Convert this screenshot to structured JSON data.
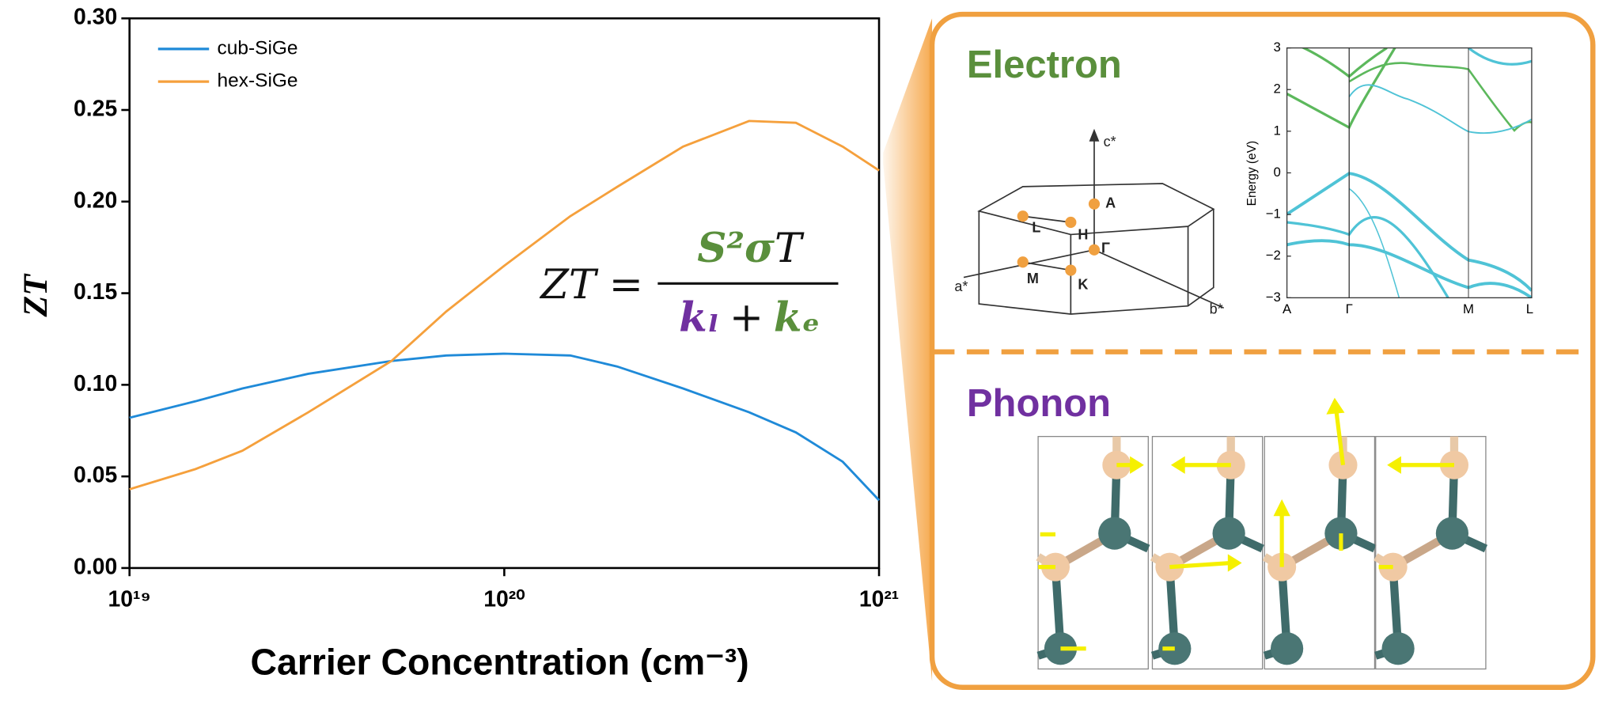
{
  "chart_data": {
    "type": "line",
    "xlabel": "Carrier Concentration (cm⁻³)",
    "ylabel": "ZT",
    "x": [
      1e+19,
      1.5e+19,
      2e+19,
      3e+19,
      5e+19,
      7e+19,
      1e+20,
      1.5e+20,
      2e+20,
      3e+20,
      4.5e+20,
      6e+20,
      8e+20,
      1e+21
    ],
    "xscale": "log",
    "xlim": [
      1e+19,
      1e+21
    ],
    "xticks": [
      {
        "value": 1e+19,
        "label": "10¹⁹"
      },
      {
        "value": 1e+20,
        "label": "10²⁰"
      },
      {
        "value": 1e+21,
        "label": "10²¹"
      }
    ],
    "ylim": [
      0,
      0.3
    ],
    "yticks": [
      {
        "value": 0,
        "label": "0.00"
      },
      {
        "value": 0.05,
        "label": "0.05"
      },
      {
        "value": 0.1,
        "label": "0.10"
      },
      {
        "value": 0.15,
        "label": "0.15"
      },
      {
        "value": 0.2,
        "label": "0.20"
      },
      {
        "value": 0.25,
        "label": "0.25"
      },
      {
        "value": 0.3,
        "label": "0.30"
      }
    ],
    "legend": "upper left",
    "series": [
      {
        "name": "cub-SiGe",
        "color": "#1f8ad8",
        "values": [
          0.082,
          0.091,
          0.098,
          0.106,
          0.113,
          0.116,
          0.117,
          0.116,
          0.11,
          0.098,
          0.085,
          0.074,
          0.058,
          0.037
        ]
      },
      {
        "name": "hex-SiGe",
        "color": "#f5a03c",
        "values": [
          0.043,
          0.054,
          0.064,
          0.085,
          0.113,
          0.14,
          0.165,
          0.192,
          0.208,
          0.23,
          0.244,
          0.243,
          0.23,
          0.217
        ]
      }
    ],
    "formula": {
      "lhs": "ZT =",
      "numerator_green": "S²σ",
      "numerator_black": "T",
      "denominator_purple": "kₗ",
      "denominator_plus": "+",
      "denominator_green": "kₑ"
    }
  },
  "electron_panel": {
    "title": "Electron",
    "band_structure": {
      "ylabel": "Energy (eV)",
      "yticks": [
        {
          "value": 3,
          "label": "3"
        },
        {
          "value": 2,
          "label": "2"
        },
        {
          "value": 1,
          "label": "1"
        },
        {
          "value": 0,
          "label": "0"
        },
        {
          "value": -1,
          "label": "−1"
        },
        {
          "value": -2,
          "label": "−2"
        },
        {
          "value": -3,
          "label": "−3"
        }
      ],
      "kpoints": [
        "A",
        "Γ",
        "M",
        "L"
      ]
    },
    "brillouin_zone": {
      "labels": [
        "c*",
        "A",
        "L",
        "H",
        "Γ",
        "M",
        "K",
        "a*",
        "b*"
      ]
    }
  },
  "phonon_panel": {
    "title": "Phonon"
  }
}
